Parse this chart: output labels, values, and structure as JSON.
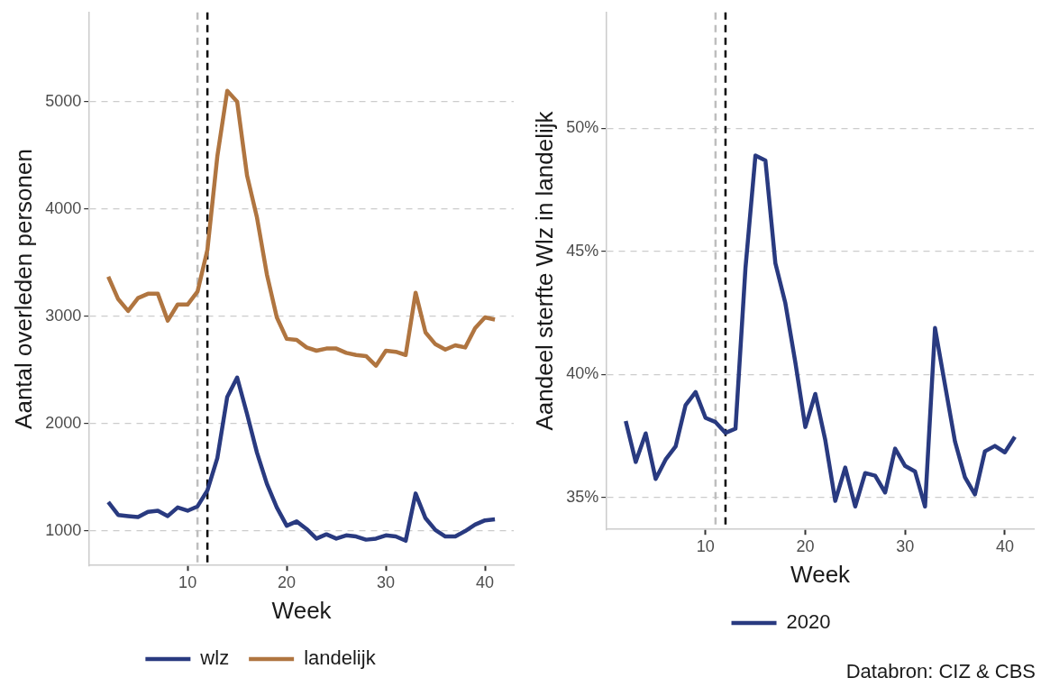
{
  "chart_data": [
    {
      "type": "line",
      "xlabel": "Week",
      "ylabel": "Aantal overleden personen",
      "x": [
        2,
        3,
        4,
        5,
        6,
        7,
        8,
        9,
        10,
        11,
        12,
        13,
        14,
        15,
        16,
        17,
        18,
        19,
        20,
        21,
        22,
        23,
        24,
        25,
        26,
        27,
        28,
        29,
        30,
        31,
        32,
        33,
        34,
        35,
        36,
        37,
        38,
        39,
        40,
        41
      ],
      "series": [
        {
          "name": "wlz",
          "color": "#293a80",
          "values": [
            1270,
            1150,
            1140,
            1130,
            1180,
            1190,
            1140,
            1220,
            1190,
            1230,
            1380,
            1680,
            2250,
            2430,
            2090,
            1730,
            1440,
            1220,
            1050,
            1090,
            1020,
            930,
            970,
            930,
            960,
            950,
            920,
            930,
            960,
            950,
            910,
            1350,
            1120,
            1010,
            950,
            950,
            1000,
            1060,
            1100,
            1110
          ]
        },
        {
          "name": "landelijk",
          "color": "#b07540",
          "values": [
            3370,
            3160,
            3050,
            3170,
            3210,
            3210,
            2960,
            3110,
            3110,
            3230,
            3620,
            4490,
            5100,
            5000,
            4310,
            3920,
            3390,
            2990,
            2790,
            2780,
            2710,
            2680,
            2700,
            2700,
            2660,
            2640,
            2630,
            2540,
            2680,
            2670,
            2640,
            3220,
            2850,
            2740,
            2690,
            2730,
            2710,
            2890,
            2990,
            2970
          ]
        }
      ],
      "xlim": [
        0.1,
        42.9
      ],
      "xticks": [
        10,
        20,
        30,
        40
      ],
      "ylim": [
        680,
        5830
      ],
      "yticks": [
        1000,
        2000,
        3000,
        4000,
        5000
      ],
      "grid": "y",
      "legend": "bottom",
      "marker": "none",
      "line_style": "solid",
      "ref_lines": [
        {
          "axis": "x",
          "value": 11,
          "color": "#bebebe",
          "line_style": "dashed"
        },
        {
          "axis": "x",
          "value": 12,
          "color": "#000000",
          "line_style": "dashed"
        }
      ]
    },
    {
      "type": "line",
      "xlabel": "Week",
      "ylabel": "Aandeel sterfte Wlz in landelijk",
      "x": [
        2,
        3,
        4,
        5,
        6,
        7,
        8,
        9,
        10,
        11,
        12,
        13,
        14,
        15,
        16,
        17,
        18,
        19,
        20,
        21,
        22,
        23,
        24,
        25,
        26,
        27,
        28,
        29,
        30,
        31,
        32,
        33,
        34,
        35,
        36,
        37,
        38,
        39,
        40,
        41
      ],
      "series": [
        {
          "name": "2020",
          "color": "#293a80",
          "values": [
            38.1,
            36.44,
            37.6,
            35.75,
            36.54,
            37.07,
            38.75,
            39.28,
            38.23,
            38.06,
            37.62,
            37.79,
            44.31,
            48.89,
            48.69,
            44.51,
            42.89,
            40.49,
            37.86,
            39.2,
            37.33,
            34.86,
            36.21,
            34.63,
            35.99,
            35.88,
            35.2,
            36.98,
            36.28,
            36.05,
            34.63,
            41.88,
            39.57,
            37.27,
            35.82,
            35.12,
            36.87,
            37.09,
            36.83,
            37.46
          ]
        }
      ],
      "xlim": [
        0.1,
        42.9
      ],
      "xticks": [
        10,
        20,
        30,
        40
      ],
      "ylim": [
        33.7,
        54.7
      ],
      "yticks": [
        {
          "value": 35,
          "label": "35%"
        },
        {
          "value": 40,
          "label": "40%"
        },
        {
          "value": 45,
          "label": "45%"
        },
        {
          "value": 50,
          "label": "50%"
        }
      ],
      "grid": "y",
      "legend": "bottom",
      "marker": "none",
      "line_style": "solid",
      "ref_lines": [
        {
          "axis": "x",
          "value": 11,
          "color": "#bebebe",
          "line_style": "dashed"
        },
        {
          "axis": "x",
          "value": 12,
          "color": "#000000",
          "line_style": "dashed"
        }
      ],
      "annotations": [
        "Databron: CIZ & CBS"
      ]
    }
  ]
}
